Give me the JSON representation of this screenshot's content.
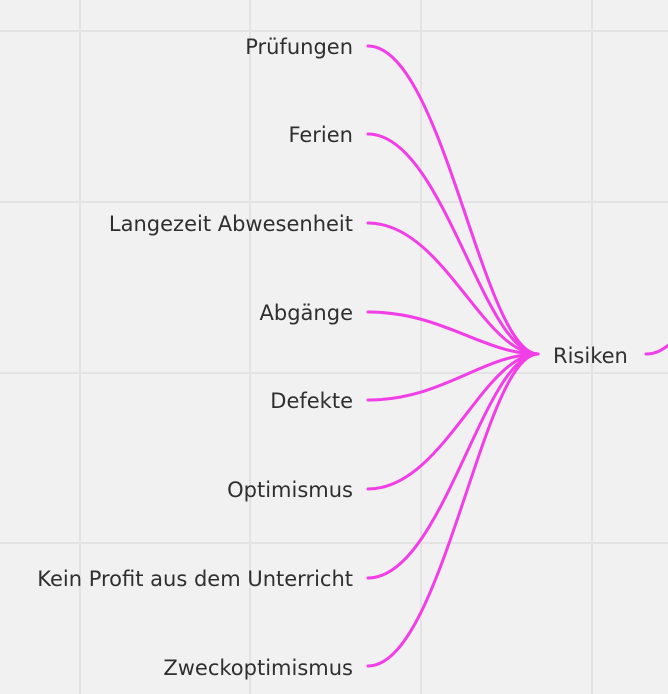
{
  "mindmap": {
    "center": {
      "label": "Risiken"
    },
    "branches": [
      {
        "label": "Prüfungen"
      },
      {
        "label": "Ferien"
      },
      {
        "label": "Langezeit Abwesenheit"
      },
      {
        "label": "Abgänge"
      },
      {
        "label": "Defekte"
      },
      {
        "label": "Optimismus"
      },
      {
        "label": "Kein Profit aus dem Unterricht"
      },
      {
        "label": "Zweckoptimismus"
      }
    ],
    "connector_color": "#f23ee6"
  }
}
